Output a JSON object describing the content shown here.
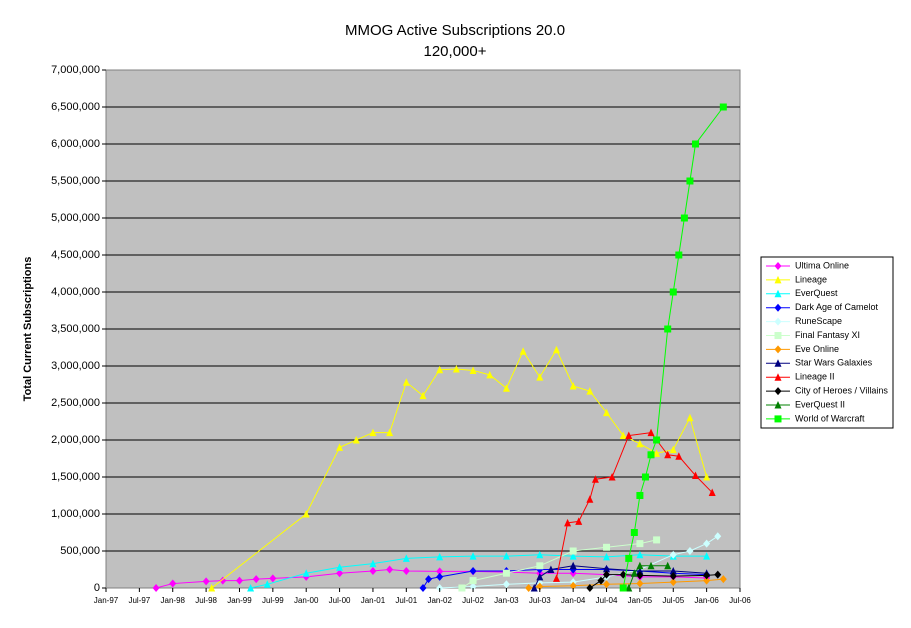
{
  "chart_data": {
    "type": "line",
    "title": "MMOG Active Subscriptions 20.0",
    "subtitle": "120,000+",
    "y_label": "Total Current Subscriptions",
    "xlim": [
      "1997-01",
      "2006-07"
    ],
    "xticks": [
      {
        "value": "1997-01",
        "label": "Jan-97"
      },
      {
        "value": "1997-07",
        "label": "Jul-97"
      },
      {
        "value": "1998-01",
        "label": "Jan-98"
      },
      {
        "value": "1998-07",
        "label": "Jul-98"
      },
      {
        "value": "1999-01",
        "label": "Jan-99"
      },
      {
        "value": "1999-07",
        "label": "Jul-99"
      },
      {
        "value": "2000-01",
        "label": "Jan-00"
      },
      {
        "value": "2000-07",
        "label": "Jul-00"
      },
      {
        "value": "2001-01",
        "label": "Jan-01"
      },
      {
        "value": "2001-07",
        "label": "Jul-01"
      },
      {
        "value": "2002-01",
        "label": "Jan-02"
      },
      {
        "value": "2002-07",
        "label": "Jul-02"
      },
      {
        "value": "2003-01",
        "label": "Jan-03"
      },
      {
        "value": "2003-07",
        "label": "Jul-03"
      },
      {
        "value": "2004-01",
        "label": "Jan-04"
      },
      {
        "value": "2004-07",
        "label": "Jul-04"
      },
      {
        "value": "2005-01",
        "label": "Jan-05"
      },
      {
        "value": "2005-07",
        "label": "Jul-05"
      },
      {
        "value": "2006-01",
        "label": "Jan-06"
      },
      {
        "value": "2006-07",
        "label": "Jul-06"
      }
    ],
    "ylim": [
      0,
      7000000
    ],
    "yticks": [
      0,
      {
        "value": 500000,
        "label": "500,000"
      },
      {
        "value": 1000000,
        "label": "1,000,000"
      },
      {
        "value": 1500000,
        "label": "1,500,000"
      },
      {
        "value": 2000000,
        "label": "2,000,000"
      },
      {
        "value": 2500000,
        "label": "2,500,000"
      },
      {
        "value": 3000000,
        "label": "3,000,000"
      },
      {
        "value": 3500000,
        "label": "3,500,000"
      },
      {
        "value": 4000000,
        "label": "4,000,000"
      },
      {
        "value": 4500000,
        "label": "4,500,000"
      },
      {
        "value": 5000000,
        "label": "5,000,000"
      },
      {
        "value": 5500000,
        "label": "5,500,000"
      },
      {
        "value": 6000000,
        "label": "6,000,000"
      },
      {
        "value": 6500000,
        "label": "6,500,000"
      },
      {
        "value": 7000000,
        "label": "7,000,000"
      }
    ],
    "grid": true,
    "legend": "right",
    "series": [
      {
        "name": "Ultima Online",
        "color": "#ff00ff",
        "marker": "diamond",
        "x": [
          "1997-10",
          "1998-01",
          "1998-07",
          "1998-10",
          "1999-01",
          "1999-04",
          "1999-07",
          "2000-01",
          "2000-07",
          "2001-01",
          "2001-04",
          "2001-07",
          "2002-01",
          "2002-07",
          "2003-01",
          "2003-07",
          "2004-01",
          "2004-07",
          "2005-01",
          "2005-07",
          "2006-01"
        ],
        "values": [
          0,
          60000,
          90000,
          100000,
          100000,
          120000,
          130000,
          150000,
          200000,
          230000,
          250000,
          230000,
          225000,
          225000,
          215000,
          200000,
          200000,
          180000,
          150000,
          150000,
          135000
        ]
      },
      {
        "name": "Lineage",
        "color": "#ffff00",
        "marker": "triangle",
        "x": [
          "1998-08",
          "2000-01",
          "2000-07",
          "2000-10",
          "2001-01",
          "2001-04",
          "2001-07",
          "2001-10",
          "2002-01",
          "2002-04",
          "2002-07",
          "2002-10",
          "2003-01",
          "2003-04",
          "2003-07",
          "2003-10",
          "2004-01",
          "2004-04",
          "2004-07",
          "2004-10",
          "2005-01",
          "2005-04",
          "2005-07",
          "2005-10",
          "2006-01"
        ],
        "values": [
          0,
          1000000,
          1900000,
          2000000,
          2100000,
          2100000,
          2780000,
          2600000,
          2950000,
          2960000,
          2940000,
          2880000,
          2700000,
          3200000,
          2850000,
          3220000,
          2730000,
          2660000,
          2370000,
          2060000,
          1950000,
          1820000,
          1870000,
          2300000,
          1500000
        ]
      },
      {
        "name": "EverQuest",
        "color": "#00ffff",
        "marker": "triangle",
        "x": [
          "1999-03",
          "1999-06",
          "2000-01",
          "2000-07",
          "2001-01",
          "2001-07",
          "2002-01",
          "2002-07",
          "2003-01",
          "2003-07",
          "2004-01",
          "2004-07",
          "2005-01",
          "2005-07",
          "2006-01"
        ],
        "values": [
          0,
          50000,
          200000,
          280000,
          330000,
          400000,
          420000,
          430000,
          430000,
          450000,
          430000,
          420000,
          450000,
          430000,
          430000
        ]
      },
      {
        "name": "Dark Age of Camelot",
        "color": "#0000ff",
        "marker": "diamond",
        "x": [
          "2001-10",
          "2001-11",
          "2002-01",
          "2002-07",
          "2003-01",
          "2003-07",
          "2004-01",
          "2004-07",
          "2005-01",
          "2005-07",
          "2006-01"
        ],
        "values": [
          0,
          120000,
          150000,
          230000,
          230000,
          250000,
          250000,
          250000,
          230000,
          200000,
          180000
        ]
      },
      {
        "name": "RuneScape",
        "color": "#ccffff",
        "marker": "diamond",
        "x": [
          "2002-01",
          "2002-07",
          "2003-01",
          "2003-07",
          "2004-01",
          "2004-07",
          "2005-01",
          "2005-07",
          "2005-10",
          "2006-01",
          "2006-03"
        ],
        "values": [
          0,
          20000,
          50000,
          70000,
          80000,
          150000,
          250000,
          450000,
          500000,
          600000,
          700000
        ]
      },
      {
        "name": "Final Fantasy XI",
        "color": "#ccffcc",
        "marker": "square",
        "x": [
          "2002-05",
          "2002-07",
          "2003-01",
          "2003-07",
          "2004-01",
          "2004-07",
          "2005-01",
          "2005-04"
        ],
        "values": [
          0,
          100000,
          200000,
          300000,
          500000,
          550000,
          600000,
          650000
        ]
      },
      {
        "name": "Eve Online",
        "color": "#ff9900",
        "marker": "diamond",
        "x": [
          "2003-05",
          "2003-07",
          "2004-01",
          "2004-07",
          "2005-01",
          "2005-07",
          "2006-01",
          "2006-04"
        ],
        "values": [
          0,
          20000,
          30000,
          50000,
          60000,
          80000,
          100000,
          120000
        ]
      },
      {
        "name": "Star Wars Galaxies",
        "color": "#000080",
        "marker": "triangle",
        "x": [
          "2003-06",
          "2003-07",
          "2003-09",
          "2004-01",
          "2004-07",
          "2005-01",
          "2005-07",
          "2006-01"
        ],
        "values": [
          0,
          150000,
          250000,
          300000,
          260000,
          230000,
          230000,
          200000
        ]
      },
      {
        "name": "Lineage II",
        "color": "#ff0000",
        "marker": "triangle",
        "x": [
          "2003-10",
          "2003-12",
          "2004-02",
          "2004-04",
          "2004-05",
          "2004-08",
          "2004-11",
          "2005-03",
          "2005-06",
          "2005-08",
          "2005-11",
          "2006-02"
        ],
        "values": [
          130000,
          880000,
          900000,
          1200000,
          1470000,
          1500000,
          2060000,
          2100000,
          1800000,
          1780000,
          1520000,
          1290000
        ]
      },
      {
        "name": "City of Heroes / Villains",
        "color": "#000000",
        "marker": "diamond",
        "x": [
          "2004-04",
          "2004-06",
          "2004-07",
          "2004-10",
          "2005-01",
          "2005-07",
          "2006-01",
          "2006-03"
        ],
        "values": [
          0,
          100000,
          180000,
          180000,
          170000,
          160000,
          170000,
          180000
        ]
      },
      {
        "name": "EverQuest II",
        "color": "#008000",
        "marker": "triangle",
        "x": [
          "2004-11",
          "2004-12",
          "2005-01",
          "2005-03",
          "2005-06"
        ],
        "values": [
          0,
          200000,
          300000,
          300000,
          300000
        ]
      },
      {
        "name": "World of Warcraft",
        "color": "#00ff00",
        "marker": "square",
        "x": [
          "2004-10",
          "2004-11",
          "2004-12",
          "2005-01",
          "2005-02",
          "2005-03",
          "2005-04",
          "2005-06",
          "2005-07",
          "2005-08",
          "2005-09",
          "2005-10",
          "2005-11",
          "2006-04"
        ],
        "values": [
          0,
          400000,
          750000,
          1250000,
          1500000,
          1800000,
          2000000,
          3500000,
          4000000,
          4500000,
          5000000,
          5500000,
          6000000,
          6500000
        ]
      }
    ]
  }
}
